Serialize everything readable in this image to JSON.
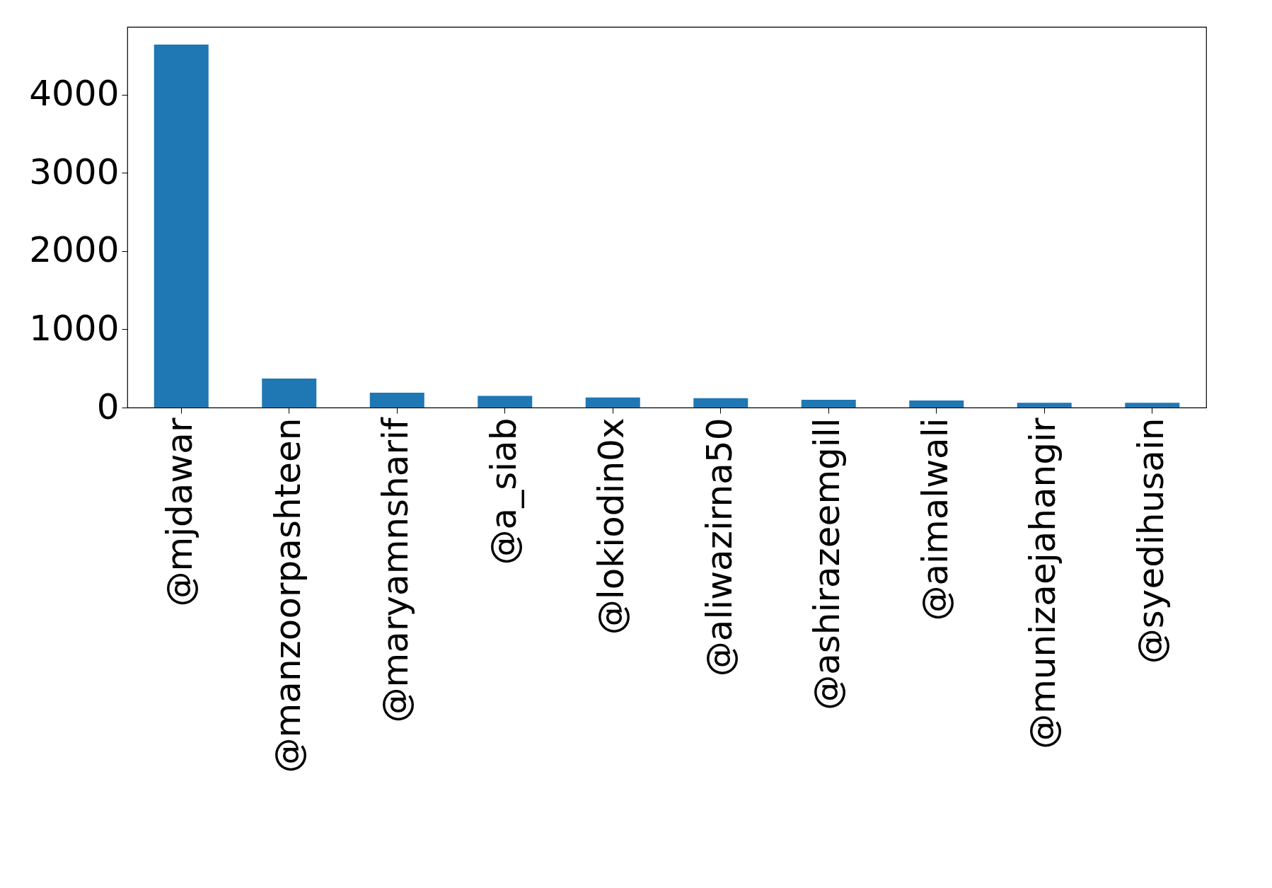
{
  "chart_data": {
    "type": "bar",
    "categories": [
      "@mjdawar",
      "@manzoorpashteen",
      "@maryamnsharif",
      "@a_siab",
      "@lokiodin0x",
      "@aliwazirna50",
      "@ashirazeemgill",
      "@aimalwali",
      "@munizaejahangir",
      "@syedihusain"
    ],
    "values": [
      4640,
      370,
      190,
      150,
      130,
      120,
      100,
      90,
      60,
      60
    ],
    "color": "#1f77b4",
    "ylim": [
      0,
      4867
    ],
    "yticks": [
      0,
      1000,
      2000,
      3000,
      4000
    ],
    "grid": false
  }
}
